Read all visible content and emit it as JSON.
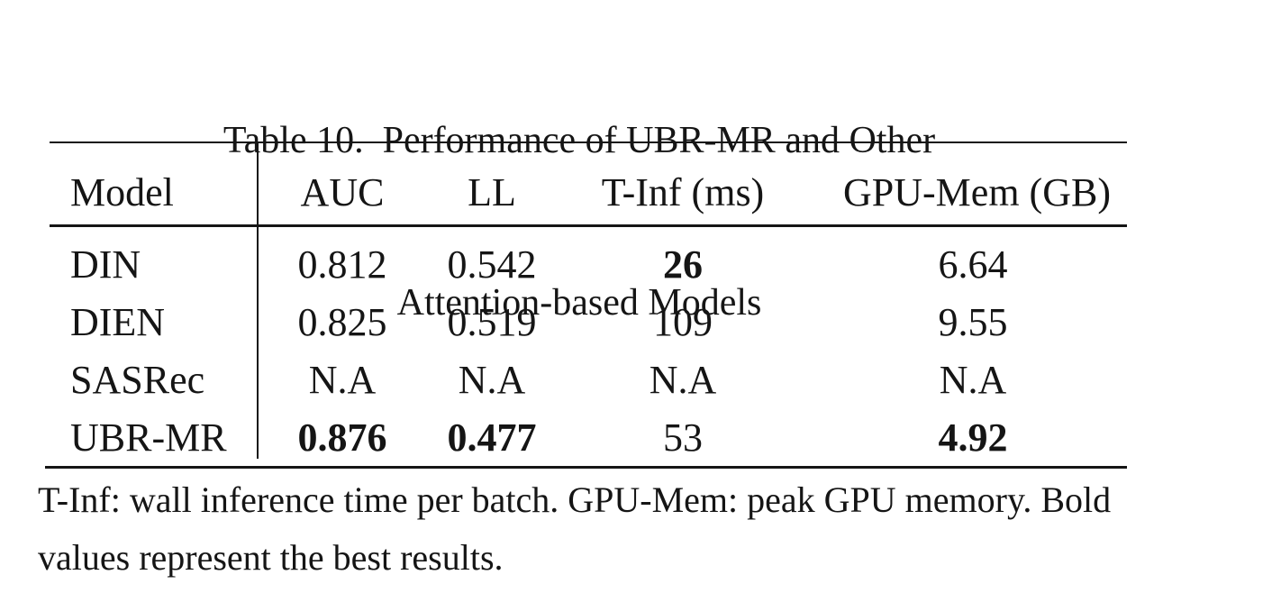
{
  "caption": {
    "line1": "Table 10.  Performance of UBR-MR and Other",
    "line2": "Attention-based Models"
  },
  "table": {
    "columns": [
      {
        "label": "Model"
      },
      {
        "label": "AUC"
      },
      {
        "label": "LL"
      },
      {
        "label": "T-Inf (ms)"
      },
      {
        "label": "GPU-Mem (GB)"
      }
    ],
    "rows": [
      {
        "cells": [
          {
            "text": "DIN",
            "bold": false
          },
          {
            "text": "0.812",
            "bold": false
          },
          {
            "text": "0.542",
            "bold": false
          },
          {
            "text": "26",
            "bold": true
          },
          {
            "text": "6.64",
            "bold": false
          }
        ]
      },
      {
        "cells": [
          {
            "text": "DIEN",
            "bold": false
          },
          {
            "text": "0.825",
            "bold": false
          },
          {
            "text": "0.519",
            "bold": false
          },
          {
            "text": "109",
            "bold": false
          },
          {
            "text": "9.55",
            "bold": false
          }
        ]
      },
      {
        "cells": [
          {
            "text": "SASRec",
            "bold": false
          },
          {
            "text": "N.A",
            "bold": false
          },
          {
            "text": "N.A",
            "bold": false
          },
          {
            "text": "N.A",
            "bold": false
          },
          {
            "text": "N.A",
            "bold": false
          }
        ]
      },
      {
        "cells": [
          {
            "text": "UBR-MR",
            "bold": false
          },
          {
            "text": "0.876",
            "bold": true
          },
          {
            "text": "0.477",
            "bold": true
          },
          {
            "text": "53",
            "bold": false
          },
          {
            "text": "4.92",
            "bold": true
          }
        ]
      }
    ]
  },
  "footnote": {
    "line1": "T-Inf: wall inference time per batch. GPU-Mem: peak GPU memory. Bold",
    "line2": "values represent the best results."
  },
  "colors": {
    "text": "#151515",
    "background": "#ffffff",
    "rule": "#151515"
  }
}
